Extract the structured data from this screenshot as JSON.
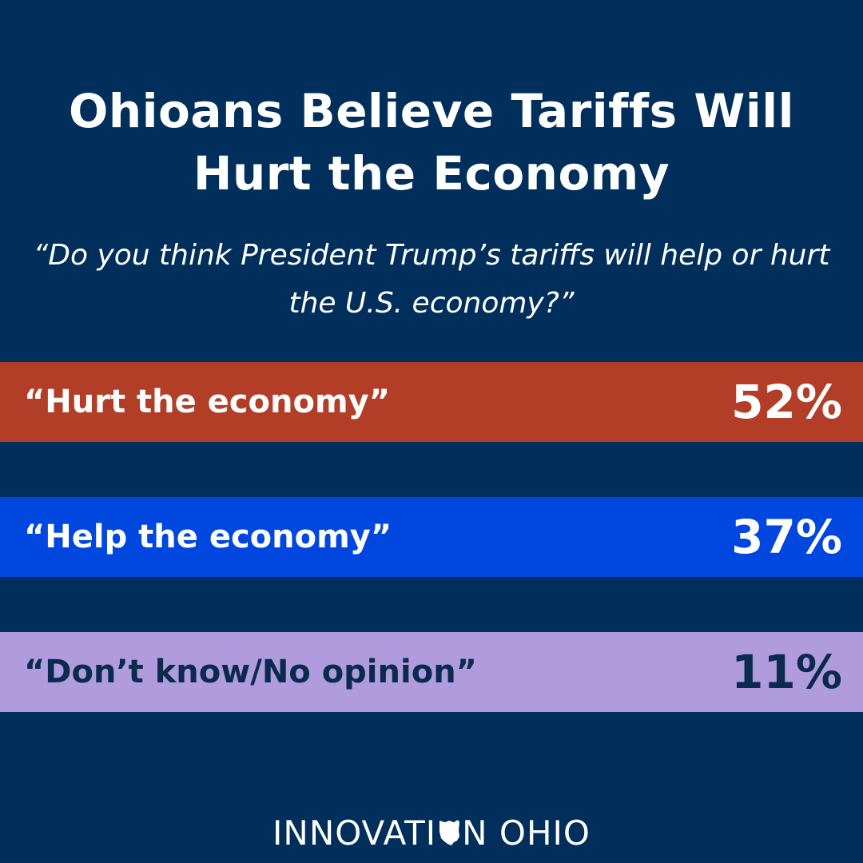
{
  "colors": {
    "background": "#002f5b",
    "text_light": "#ffffff",
    "text_dark": "#0b2a4f"
  },
  "chart_data": {
    "type": "bar",
    "orientation": "horizontal",
    "title": "Ohioans Believe Tariffs Will Hurt the Economy",
    "subtitle": "“Do you think President Trump’s tariffs will help or hurt the U.S. economy?”",
    "categories": [
      "“Hurt the economy”",
      "“Help the economy”",
      "“Don’t know/No opinion”"
    ],
    "values": [
      52,
      37,
      11
    ],
    "value_labels": [
      "52%",
      "37%",
      "11%"
    ],
    "bar_colors": [
      "#b23e27",
      "#0047e0",
      "#b09cdc"
    ],
    "label_colors": [
      "#ffffff",
      "#ffffff",
      "#0b2a4f"
    ],
    "unit": "%"
  },
  "logo": {
    "left_text": "INNOVATI",
    "right_text": "N OHIO",
    "icon": "ohio-state-icon"
  }
}
